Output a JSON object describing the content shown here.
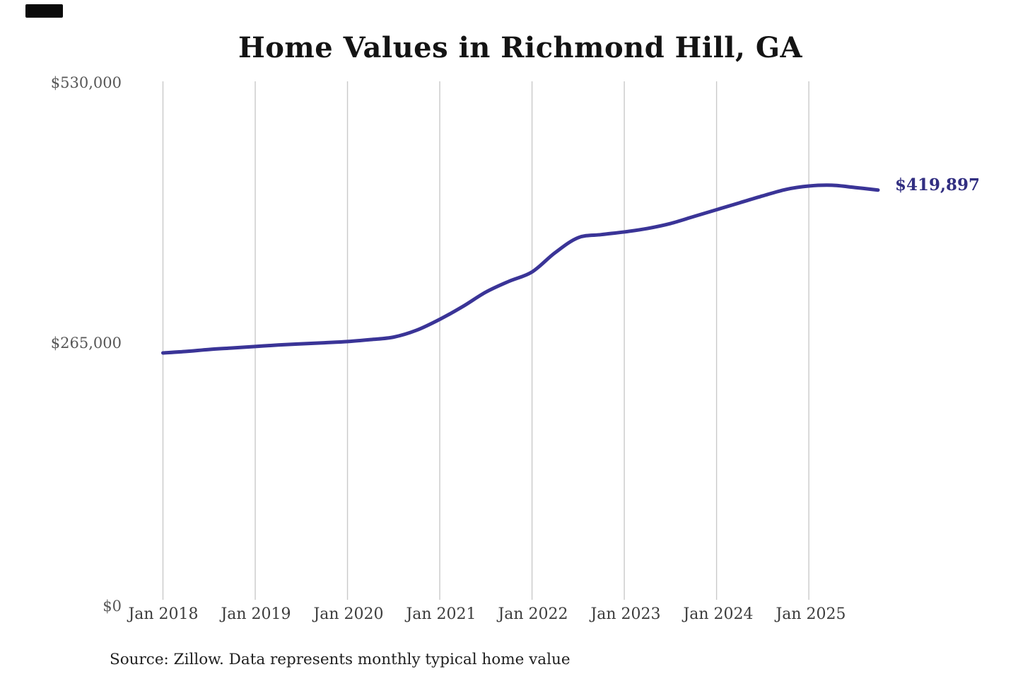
{
  "source_note": "Source: Zillow. Data represents monthly typical home value",
  "colors": {
    "background": "#ffffff",
    "gridline": "#c9c9c9",
    "title_text": "#141414",
    "y_tick_text": "#575757",
    "x_tick_text": "#3d3d3d",
    "end_label_text": "#312e81",
    "source_text": "#1f1f1f",
    "top_left_mark": "#0a0a0a"
  },
  "chart_data": {
    "type": "line",
    "title": "Home Values in Richmond Hill, GA",
    "xlabel": "",
    "ylabel": "",
    "ylim": [
      0,
      530000
    ],
    "y_tick_values": [
      530000,
      265000,
      0
    ],
    "y_tick_labels": [
      "$530,000",
      "$265,000",
      "$0"
    ],
    "x_tick_labels": [
      "Jan 2018",
      "Jan 2019",
      "Jan 2020",
      "Jan 2021",
      "Jan 2022",
      "Jan 2023",
      "Jan 2024",
      "Jan 2025"
    ],
    "grid": "vertical-only",
    "legend": "none",
    "line_color": "#3a3497",
    "line_width": 5,
    "series_name": "Monthly typical home value (USD)",
    "x_months_from_jan_2018": [
      0,
      3,
      6,
      9,
      12,
      15,
      18,
      21,
      24,
      27,
      30,
      33,
      36,
      39,
      42,
      45,
      48,
      51,
      54,
      57,
      60,
      63,
      66,
      69,
      72,
      75,
      78,
      81,
      84,
      87,
      90,
      93
    ],
    "values": [
      255000,
      256500,
      258500,
      260000,
      261500,
      263000,
      264200,
      265300,
      266500,
      268500,
      271000,
      278000,
      289000,
      302000,
      316600,
      327500,
      337000,
      356500,
      371700,
      374800,
      377500,
      381000,
      386000,
      393000,
      400000,
      407000,
      414000,
      420500,
      424000,
      424800,
      422500,
      419897
    ],
    "final_value": 419897,
    "final_value_label": "$419,897"
  }
}
